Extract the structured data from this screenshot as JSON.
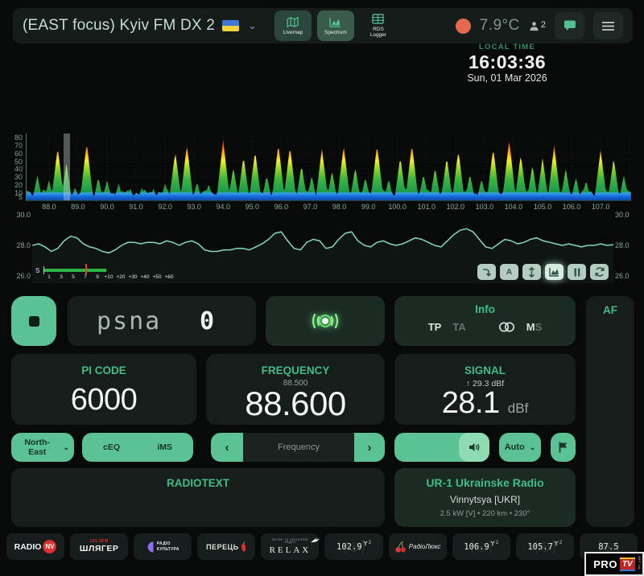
{
  "header": {
    "title": "(EAST focus) Kyiv FM DX 2",
    "nav": {
      "livemap": "Livemap",
      "spectrum": "Spectrum",
      "rds_logger": "RDS Logger"
    },
    "temperature": "7.9°C",
    "users_count": "2"
  },
  "clock": {
    "label": "LOCAL TIME",
    "time": "16:03:36",
    "date": "Sun, 01 Mar 2026"
  },
  "smeter": {
    "label": "S",
    "ticks": [
      "1",
      "3",
      "5",
      "7",
      "9",
      "+10",
      "+20",
      "+30",
      "+40",
      "+50",
      "+60"
    ]
  },
  "chart_data": [
    {
      "type": "area",
      "name": "fm-band-spectrum",
      "xlabel": "frequency MHz",
      "ylabel": "signal dBf",
      "x_range": [
        87.2,
        108.05
      ],
      "ylim": [
        0,
        85
      ],
      "yticks": [
        "80",
        "70",
        "60",
        "50",
        "40",
        "30",
        "20",
        "10",
        "5"
      ],
      "xticks": [
        "88.0",
        "89.0",
        "90.0",
        "91.0",
        "92.0",
        "93.0",
        "94.0",
        "95.0",
        "96.0",
        "97.0",
        "98.0",
        "99.0",
        "100.0",
        "101.0",
        "102.0",
        "103.0",
        "104.0",
        "105.0",
        "106.0",
        "107.0"
      ],
      "tuned_mhz": 88.6,
      "noise_floor": 11,
      "peaks": [
        [
          87.6,
          32
        ],
        [
          88.0,
          26
        ],
        [
          88.3,
          68
        ],
        [
          88.6,
          47
        ],
        [
          88.9,
          18
        ],
        [
          89.3,
          74
        ],
        [
          89.7,
          30
        ],
        [
          90.0,
          26
        ],
        [
          90.4,
          22
        ],
        [
          90.8,
          16
        ],
        [
          91.2,
          17
        ],
        [
          91.6,
          16
        ],
        [
          92.0,
          22
        ],
        [
          92.35,
          62
        ],
        [
          92.75,
          71
        ],
        [
          93.1,
          24
        ],
        [
          93.5,
          22
        ],
        [
          94.0,
          77
        ],
        [
          94.35,
          42
        ],
        [
          94.7,
          56
        ],
        [
          95.1,
          63
        ],
        [
          95.5,
          32
        ],
        [
          95.9,
          72
        ],
        [
          96.3,
          69
        ],
        [
          96.7,
          45
        ],
        [
          97.05,
          32
        ],
        [
          97.4,
          66
        ],
        [
          97.75,
          38
        ],
        [
          98.15,
          70
        ],
        [
          98.55,
          42
        ],
        [
          98.9,
          30
        ],
        [
          99.3,
          71
        ],
        [
          99.7,
          28
        ],
        [
          100.1,
          55
        ],
        [
          100.5,
          72
        ],
        [
          100.9,
          34
        ],
        [
          101.3,
          42
        ],
        [
          101.7,
          55
        ],
        [
          102.1,
          64
        ],
        [
          102.5,
          34
        ],
        [
          102.9,
          28
        ],
        [
          103.3,
          67
        ],
        [
          103.85,
          78
        ],
        [
          104.25,
          58
        ],
        [
          104.65,
          45
        ],
        [
          105.0,
          54
        ],
        [
          105.4,
          70
        ],
        [
          105.8,
          40
        ],
        [
          106.15,
          30
        ],
        [
          106.5,
          26
        ],
        [
          107.0,
          64
        ],
        [
          107.45,
          54
        ],
        [
          107.8,
          32
        ]
      ]
    },
    {
      "type": "line",
      "name": "signal-history",
      "ylim": [
        26,
        30
      ],
      "yticks_left": [
        "30.0",
        "28.0",
        "26.0"
      ],
      "yticks_right": [
        "30.0",
        "28.0",
        "26.0"
      ],
      "values": [
        28.0,
        28.1,
        27.9,
        27.6,
        27.8,
        28.3,
        28.6,
        28.5,
        28.1,
        27.9,
        27.8,
        27.6,
        27.5,
        27.7,
        28.0,
        28.2,
        28.2,
        28.1,
        28.2,
        28.2,
        28.1,
        28.3,
        28.2,
        28.0,
        28.2,
        28.3,
        28.1,
        27.7,
        27.6,
        27.6,
        27.7,
        27.7,
        27.8,
        27.8,
        27.7,
        27.9,
        28.1,
        28.4,
        28.8,
        28.9,
        28.3,
        27.8,
        27.7,
        28.2,
        28.4,
        28.3,
        27.8,
        27.9,
        28.4,
        28.8,
        28.9,
        28.3,
        28.0,
        27.9,
        28.2,
        28.3,
        28.1,
        28.0,
        28.1,
        28.3,
        28.5,
        28.4,
        28.2,
        28.0,
        27.9,
        28.3,
        28.7,
        29.0,
        29.1,
        28.9,
        28.4,
        27.9,
        27.8,
        28.1,
        28.4,
        28.3,
        28.1,
        28.2,
        28.4,
        28.5,
        28.3,
        28.2,
        28.1,
        28.0,
        28.1,
        28.0,
        27.9,
        28.0,
        28.0,
        28.1,
        28.0,
        28.05
      ]
    }
  ],
  "ps": {
    "value_label": "psna",
    "counter": "0"
  },
  "info_panel": {
    "title": "Info",
    "tp": "TP",
    "ta": "TA",
    "ms": {
      "m": "M",
      "s": "S"
    }
  },
  "af_panel": {
    "title": "AF"
  },
  "pi_panel": {
    "title": "PI CODE",
    "value": "6000"
  },
  "frequency_panel": {
    "title": "FREQUENCY",
    "previous": "88.500",
    "value": "88.600"
  },
  "signal_panel": {
    "title": "SIGNAL",
    "peak": "↑ 29.3 dBf",
    "value": "28.1",
    "unit": "dBf"
  },
  "controls": {
    "antenna": "North-East",
    "eq": "cEQ",
    "ims": "iMS",
    "tune_placeholder": "Frequency",
    "prev": "‹",
    "next": "›",
    "mode": "Auto"
  },
  "radiotext_panel": {
    "title": "RADIOTEXT"
  },
  "station_panel": {
    "name": "UR-1 Ukrainske Radio",
    "location": "Vinnytsya [UKR]",
    "details": "2.5 kW [V] • 220 km • 230°"
  },
  "presets": [
    {
      "kind": "radio-nv",
      "radio": "RADIO",
      "nv": "NV"
    },
    {
      "kind": "shlyager",
      "freq": "101.9FM",
      "name": "ШЛЯГЕР"
    },
    {
      "kind": "kultura",
      "line1": "РАДІО",
      "line2": "КУЛЬТУРА"
    },
    {
      "kind": "perets",
      "name": "ПЕРЕЦЬ"
    },
    {
      "kind": "relax",
      "tagline": "ЛЕГКЕ ТА СПОКІЙНЕ РАДІО",
      "name": "RELAX"
    },
    {
      "kind": "freq",
      "freq": "102.9",
      "badge": "2"
    },
    {
      "kind": "lux",
      "name": "РадіоЛюкс"
    },
    {
      "kind": "freq",
      "freq": "106.9",
      "badge": "2"
    },
    {
      "kind": "freq",
      "freq": "105.7",
      "badge": "2"
    },
    {
      "kind": "freq",
      "freq": "87.5"
    }
  ],
  "watermark": {
    "pro": "PRO",
    "tv": "TV",
    "net": "NET.UA"
  }
}
